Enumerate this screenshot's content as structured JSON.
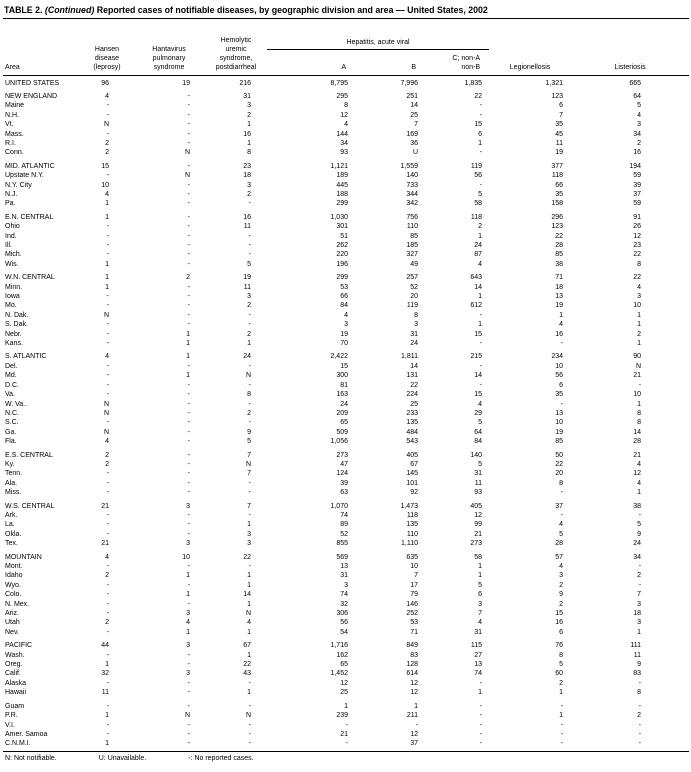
{
  "title": {
    "label": "TABLE 2.",
    "continued": "(Continued)",
    "text": "Reported cases of notifiable diseases, by geographic division and area — United States, 2002"
  },
  "table": {
    "header": {
      "area": "Area",
      "hansen": [
        "Hansen",
        "disease",
        "(leprosy)"
      ],
      "hantavirus": [
        "Hantavirus",
        "pulmonary",
        "syndrome"
      ],
      "hus": [
        "Hemolytic",
        "uremic",
        "syndrome,",
        "postdiarrheal"
      ],
      "hepatitis_group": "Hepatitis, acute viral",
      "hep_a": "A",
      "hep_b": "B",
      "hep_c": [
        "C; non-A",
        "non-B"
      ],
      "legionellosis": "Legionellosis",
      "listeriosis": "Listeriosis"
    },
    "groups": [
      {
        "name": "united-states",
        "rows": [
          [
            "UNITED STATES",
            "96",
            "19",
            "216",
            "8,795",
            "7,996",
            "1,835",
            "1,321",
            "665"
          ]
        ]
      },
      {
        "name": "new-england",
        "rows": [
          [
            "NEW ENGLAND",
            "4",
            "-",
            "31",
            "295",
            "251",
            "22",
            "123",
            "64"
          ],
          [
            "Maine",
            "-",
            "-",
            "3",
            "8",
            "14",
            "-",
            "6",
            "5"
          ],
          [
            "N.H.",
            "-",
            "-",
            "2",
            "12",
            "25",
            "-",
            "7",
            "4"
          ],
          [
            "Vt.",
            "N",
            "-",
            "1",
            "4",
            "7",
            "15",
            "35",
            "3"
          ],
          [
            "Mass.",
            "-",
            "-",
            "16",
            "144",
            "169",
            "6",
            "45",
            "34"
          ],
          [
            "R.I.",
            "2",
            "-",
            "1",
            "34",
            "36",
            "1",
            "11",
            "2"
          ],
          [
            "Conn.",
            "2",
            "N",
            "8",
            "93",
            "U",
            "-",
            "19",
            "16"
          ]
        ]
      },
      {
        "name": "mid-atlantic",
        "rows": [
          [
            "MID. ATLANTIC",
            "15",
            "-",
            "23",
            "1,121",
            "1,559",
            "119",
            "377",
            "194"
          ],
          [
            "Upstate N.Y.",
            "-",
            "N",
            "18",
            "189",
            "140",
            "56",
            "118",
            "59"
          ],
          [
            "N.Y. City",
            "10",
            "-",
            "3",
            "445",
            "733",
            "-",
            "66",
            "39"
          ],
          [
            "N.J.",
            "4",
            "-",
            "2",
            "188",
            "344",
            "5",
            "35",
            "37"
          ],
          [
            "Pa.",
            "1",
            "-",
            "-",
            "299",
            "342",
            "58",
            "158",
            "59"
          ]
        ]
      },
      {
        "name": "en-central",
        "rows": [
          [
            "E.N. CENTRAL",
            "1",
            "-",
            "16",
            "1,030",
            "756",
            "118",
            "296",
            "91"
          ],
          [
            "Ohio",
            "-",
            "-",
            "11",
            "301",
            "110",
            "2",
            "123",
            "26"
          ],
          [
            "Ind.",
            "-",
            "-",
            "-",
            "51",
            "85",
            "1",
            "22",
            "12"
          ],
          [
            "Ill.",
            "-",
            "-",
            "-",
            "262",
            "185",
            "24",
            "28",
            "23"
          ],
          [
            "Mich.",
            "-",
            "-",
            "-",
            "220",
            "327",
            "87",
            "85",
            "22"
          ],
          [
            "Wis.",
            "1",
            "-",
            "5",
            "196",
            "49",
            "4",
            "38",
            "8"
          ]
        ]
      },
      {
        "name": "wn-central",
        "rows": [
          [
            "W.N. CENTRAL",
            "1",
            "2",
            "19",
            "299",
            "257",
            "643",
            "71",
            "22"
          ],
          [
            "Minn.",
            "1",
            "-",
            "11",
            "53",
            "52",
            "14",
            "18",
            "4"
          ],
          [
            "Iowa",
            "-",
            "-",
            "3",
            "66",
            "20",
            "1",
            "13",
            "3"
          ],
          [
            "Mo.",
            "-",
            "-",
            "2",
            "84",
            "119",
            "612",
            "19",
            "10"
          ],
          [
            "N. Dak.",
            "N",
            "-",
            "-",
            "4",
            "8",
            "-",
            "1",
            "1"
          ],
          [
            "S. Dak.",
            "-",
            "-",
            "-",
            "3",
            "3",
            "1",
            "4",
            "1"
          ],
          [
            "Nebr.",
            "-",
            "1",
            "2",
            "19",
            "31",
            "15",
            "16",
            "2"
          ],
          [
            "Kans.",
            "-",
            "1",
            "1",
            "70",
            "24",
            "-",
            "-",
            "1"
          ]
        ]
      },
      {
        "name": "s-atlantic",
        "rows": [
          [
            "S. ATLANTIC",
            "4",
            "1",
            "24",
            "2,422",
            "1,811",
            "215",
            "234",
            "90"
          ],
          [
            "Del.",
            "-",
            "-",
            "-",
            "15",
            "14",
            "-",
            "10",
            "N"
          ],
          [
            "Md.",
            "-",
            "1",
            "N",
            "300",
            "131",
            "14",
            "56",
            "21"
          ],
          [
            "D.C.",
            "-",
            "-",
            "-",
            "81",
            "22",
            "-",
            "6",
            "-"
          ],
          [
            "Va.",
            "-",
            "-",
            "8",
            "163",
            "224",
            "15",
            "35",
            "10"
          ],
          [
            "W. Va..",
            "N",
            "-",
            "-",
            "24",
            "25",
            "4",
            "-",
            "1"
          ],
          [
            "N.C.",
            "N",
            "-",
            "2",
            "209",
            "233",
            "29",
            "13",
            "8"
          ],
          [
            "S.C.",
            "-",
            "-",
            "-",
            "65",
            "135",
            "5",
            "10",
            "8"
          ],
          [
            "Ga.",
            "N",
            "-",
            "9",
            "509",
            "484",
            "64",
            "19",
            "14"
          ],
          [
            "Fla.",
            "4",
            "-",
            "5",
            "1,056",
            "543",
            "84",
            "85",
            "28"
          ]
        ]
      },
      {
        "name": "es-central",
        "rows": [
          [
            "E.S. CENTRAL",
            "2",
            "-",
            "7",
            "273",
            "405",
            "140",
            "50",
            "21"
          ],
          [
            "Ky.",
            "2",
            "-",
            "N",
            "47",
            "67",
            "5",
            "22",
            "4"
          ],
          [
            "Tenn.",
            "-",
            "-",
            "7",
            "124",
            "145",
            "31",
            "20",
            "12"
          ],
          [
            "Ala.",
            "-",
            "-",
            "-",
            "39",
            "101",
            "11",
            "8",
            "4"
          ],
          [
            "Miss.",
            "-",
            "-",
            "-",
            "63",
            "92",
            "93",
            "-",
            "1"
          ]
        ]
      },
      {
        "name": "ws-central",
        "rows": [
          [
            "W.S. CENTRAL",
            "21",
            "3",
            "7",
            "1,070",
            "1,473",
            "405",
            "37",
            "38"
          ],
          [
            "Ark.",
            "-",
            "-",
            "-",
            "74",
            "118",
            "12",
            "-",
            "-"
          ],
          [
            "La.",
            "-",
            "-",
            "1",
            "89",
            "135",
            "99",
            "4",
            "5"
          ],
          [
            "Okla.",
            "-",
            "-",
            "3",
            "52",
            "110",
            "21",
            "5",
            "9"
          ],
          [
            "Tex.",
            "21",
            "3",
            "3",
            "855",
            "1,110",
            "273",
            "28",
            "24"
          ]
        ]
      },
      {
        "name": "mountain",
        "rows": [
          [
            "MOUNTAIN",
            "4",
            "10",
            "22",
            "569",
            "635",
            "58",
            "57",
            "34"
          ],
          [
            "Mont.",
            "-",
            "-",
            "-",
            "13",
            "10",
            "1",
            "4",
            "-"
          ],
          [
            "Idaho",
            "2",
            "1",
            "1",
            "31",
            "7",
            "1",
            "3",
            "2"
          ],
          [
            "Wyo.",
            "-",
            "-",
            "1",
            "3",
            "17",
            "5",
            "2",
            "-"
          ],
          [
            "Colo.",
            "-",
            "1",
            "14",
            "74",
            "79",
            "6",
            "9",
            "7"
          ],
          [
            "N. Mex.",
            "-",
            "-",
            "1",
            "32",
            "146",
            "3",
            "2",
            "3"
          ],
          [
            "Ariz.",
            "-",
            "3",
            "N",
            "306",
            "252",
            "7",
            "15",
            "18"
          ],
          [
            "Utah",
            "2",
            "4",
            "4",
            "56",
            "53",
            "4",
            "16",
            "3"
          ],
          [
            "Nev.",
            "-",
            "1",
            "1",
            "54",
            "71",
            "31",
            "6",
            "1"
          ]
        ]
      },
      {
        "name": "pacific",
        "rows": [
          [
            "PACIFIC",
            "44",
            "3",
            "67",
            "1,716",
            "849",
            "115",
            "76",
            "111"
          ],
          [
            "Wash.",
            "-",
            "-",
            "1",
            "162",
            "83",
            "27",
            "8",
            "11"
          ],
          [
            "Oreg.",
            "1",
            "-",
            "22",
            "65",
            "128",
            "13",
            "5",
            "9"
          ],
          [
            "Calif.",
            "32",
            "3",
            "43",
            "1,452",
            "614",
            "74",
            "60",
            "83"
          ],
          [
            "Alaska",
            "-",
            "-",
            "-",
            "12",
            "12",
            "-",
            "2",
            "-"
          ],
          [
            "Hawaii",
            "11",
            "-",
            "1",
            "25",
            "12",
            "1",
            "1",
            "8"
          ]
        ]
      },
      {
        "name": "territories",
        "rows": [
          [
            "Guam",
            "-",
            "-",
            "-",
            "1",
            "1",
            "-",
            "-",
            "-"
          ],
          [
            "P.R.",
            "1",
            "N",
            "N",
            "239",
            "211",
            "-",
            "1",
            "2"
          ],
          [
            "V.I.",
            "-",
            "-",
            "-",
            "-",
            "-",
            "-",
            "-",
            "-"
          ],
          [
            "Amer. Samoa",
            "-",
            "-",
            "-",
            "21",
            "12",
            "-",
            "-",
            "-"
          ],
          [
            "C.N.M.I.",
            "1",
            "-",
            "-",
            "-",
            "37",
            "-",
            "-",
            "-"
          ]
        ]
      }
    ]
  },
  "footnotes": [
    "N: Not notifiable.",
    "U: Unavailable.",
    "-: No reported cases."
  ]
}
